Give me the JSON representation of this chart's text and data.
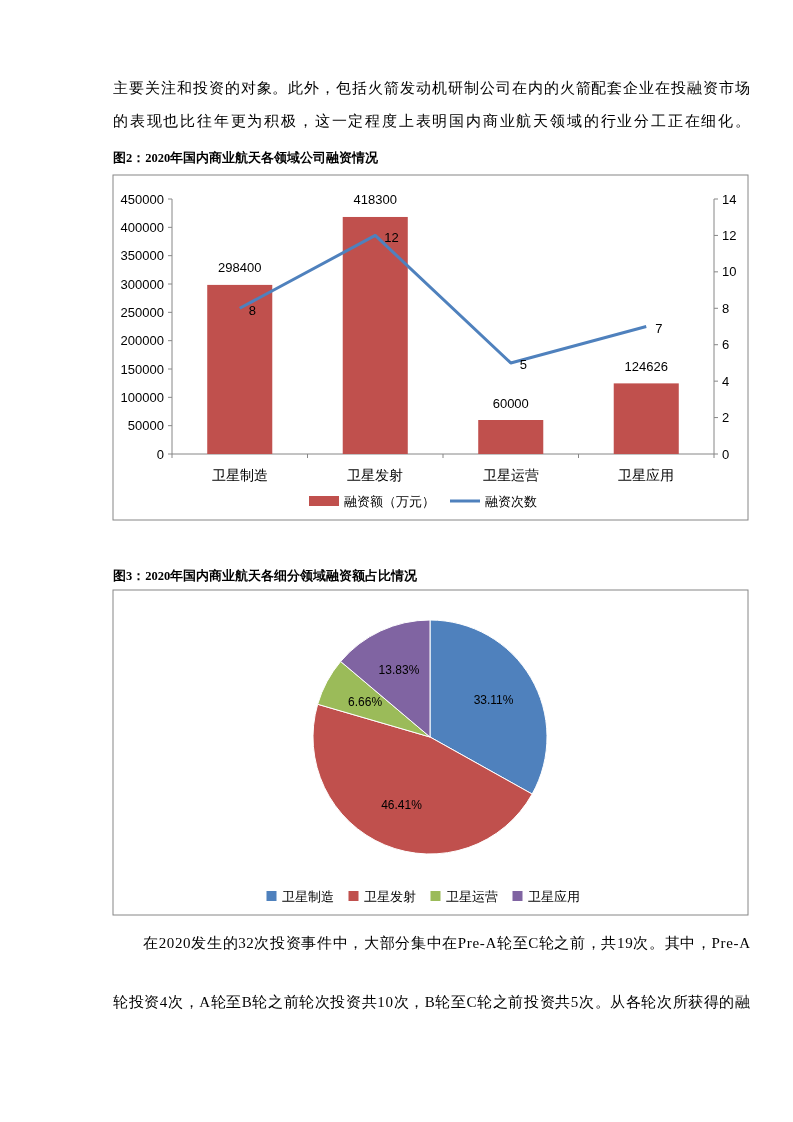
{
  "chart_data": [
    {
      "type": "bar",
      "title": "图2：2020年国内商业航天各领域公司融资情况",
      "annotations": [
        "主要关注和投资的对象。此外，包括火箭发动机研制公司在内的火箭配套企业在投融资市场",
        "的表现也比往年更为积极，这一定程度上表明国内商业航天领域的行业分工正在细化。"
      ],
      "categories": [
        "卫星制造",
        "卫星发射",
        "卫星运营",
        "卫星应用"
      ],
      "series": [
        {
          "name": "融资额（万元）",
          "type": "bar",
          "color": "#c0504d",
          "values": [
            298400,
            418300,
            60000,
            124626
          ]
        },
        {
          "name": "融资次数",
          "type": "line",
          "axis": "y2",
          "color": "#4f81bd",
          "values": [
            8,
            12,
            5,
            7
          ]
        }
      ],
      "ylim": [
        0,
        450000
      ],
      "yticks": [
        0,
        50000,
        100000,
        150000,
        200000,
        250000,
        300000,
        350000,
        400000,
        450000
      ],
      "y2lim": [
        0,
        14
      ],
      "y2ticks": [
        0,
        2,
        4,
        6,
        8,
        10,
        12,
        14
      ],
      "data_labels": true,
      "legend": "bottom",
      "marker": "none"
    },
    {
      "type": "pie",
      "title": "图3：2020年国内商业航天各细分领域融资额占比情况",
      "annotations": [
        "在2020发生的32次投资事件中，大部分集中在Pre-A轮至C轮之前，共19次。其中，Pre-A",
        "轮投资4次，A轮至B轮之前轮次投资共10次，B轮至C轮之前投资共5次。从各轮次所获得的融"
      ],
      "categories": [
        "卫星制造",
        "卫星发射",
        "卫星运营",
        "卫星应用"
      ],
      "values": [
        33.11,
        46.41,
        6.66,
        13.83
      ],
      "value_labels": [
        "33.11%",
        "46.41%",
        "6.66%",
        "13.83%"
      ],
      "colors": [
        "#4f81bd",
        "#c0504d",
        "#9bbb59",
        "#8064a2"
      ],
      "legend": "bottom"
    }
  ]
}
